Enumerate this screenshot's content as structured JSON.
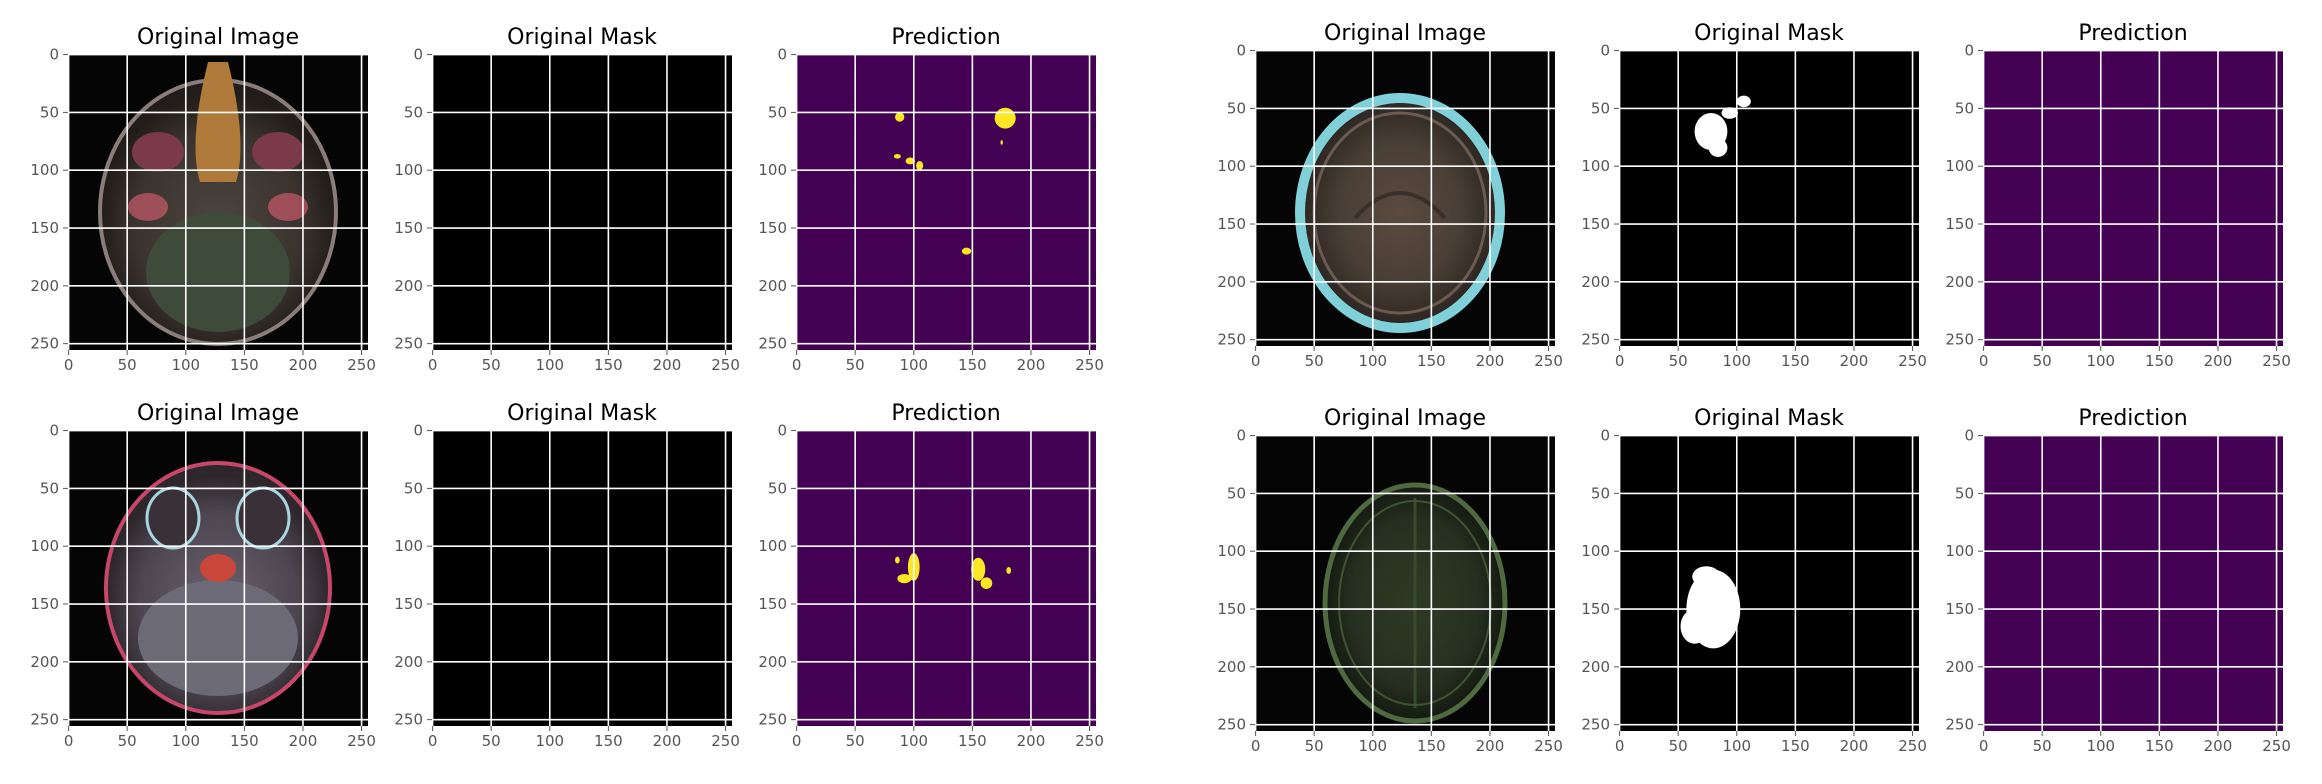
{
  "figure": {
    "background": "#ffffff",
    "colors": {
      "viridis_low": "#440154",
      "viridis_high": "#fde725",
      "mask_background": "#000000",
      "mask_foreground": "#ffffff",
      "grid": "#ffffff",
      "tick_text": "#555555"
    }
  },
  "chart_data": [
    {
      "type": "heatmap",
      "title": "Original Image",
      "content": "mri-slice-orbital",
      "xlim": [
        0,
        255
      ],
      "ylim": [
        255,
        0
      ],
      "xticks": [
        0,
        50,
        100,
        150,
        200,
        250
      ],
      "yticks": [
        0,
        50,
        100,
        150,
        200,
        250
      ],
      "grid": true
    },
    {
      "type": "heatmap",
      "title": "Original Mask",
      "content": "binary-mask",
      "mask_regions": [],
      "xlim": [
        0,
        255
      ],
      "ylim": [
        255,
        0
      ],
      "xticks": [
        0,
        50,
        100,
        150,
        200,
        250
      ],
      "yticks": [
        0,
        50,
        100,
        150,
        200,
        250
      ],
      "grid": true
    },
    {
      "type": "heatmap",
      "title": "Prediction",
      "content": "predicted-mask",
      "mask_regions": [
        {
          "cx": 178,
          "cy": 55,
          "rx": 9,
          "ry": 9
        },
        {
          "cx": 88,
          "cy": 54,
          "rx": 4,
          "ry": 4
        },
        {
          "cx": 86,
          "cy": 88,
          "rx": 3,
          "ry": 2
        },
        {
          "cx": 97,
          "cy": 92,
          "rx": 4,
          "ry": 3
        },
        {
          "cx": 105,
          "cy": 96,
          "rx": 3,
          "ry": 4
        },
        {
          "cx": 145,
          "cy": 170,
          "rx": 4,
          "ry": 3
        },
        {
          "cx": 175,
          "cy": 76,
          "rx": 1,
          "ry": 2
        }
      ],
      "xlim": [
        0,
        255
      ],
      "ylim": [
        255,
        0
      ],
      "xticks": [
        0,
        50,
        100,
        150,
        200,
        250
      ],
      "yticks": [
        0,
        50,
        100,
        150,
        200,
        250
      ],
      "grid": true
    },
    {
      "type": "heatmap",
      "title": "Original Image",
      "content": "mri-slice-skull-top",
      "xlim": [
        0,
        255
      ],
      "ylim": [
        255,
        0
      ],
      "xticks": [
        0,
        50,
        100,
        150,
        200,
        250
      ],
      "yticks": [
        0,
        50,
        100,
        150,
        200,
        250
      ],
      "grid": true
    },
    {
      "type": "heatmap",
      "title": "Original Mask",
      "content": "binary-mask",
      "mask_regions": [
        {
          "cx": 78,
          "cy": 70,
          "rx": 14,
          "ry": 16
        },
        {
          "cx": 94,
          "cy": 54,
          "rx": 7,
          "ry": 5
        },
        {
          "cx": 106,
          "cy": 44,
          "rx": 6,
          "ry": 5
        },
        {
          "cx": 84,
          "cy": 84,
          "rx": 8,
          "ry": 8
        }
      ],
      "xlim": [
        0,
        255
      ],
      "ylim": [
        255,
        0
      ],
      "xticks": [
        0,
        50,
        100,
        150,
        200,
        250
      ],
      "yticks": [
        0,
        50,
        100,
        150,
        200,
        250
      ],
      "grid": true
    },
    {
      "type": "heatmap",
      "title": "Prediction",
      "content": "predicted-mask",
      "mask_regions": [],
      "xlim": [
        0,
        255
      ],
      "ylim": [
        255,
        0
      ],
      "xticks": [
        0,
        50,
        100,
        150,
        200,
        250
      ],
      "yticks": [
        0,
        50,
        100,
        150,
        200,
        250
      ],
      "grid": true
    },
    {
      "type": "heatmap",
      "title": "Original Image",
      "content": "mri-slice-cerebellum",
      "xlim": [
        0,
        255
      ],
      "ylim": [
        255,
        0
      ],
      "xticks": [
        0,
        50,
        100,
        150,
        200,
        250
      ],
      "yticks": [
        0,
        50,
        100,
        150,
        200,
        250
      ],
      "grid": true
    },
    {
      "type": "heatmap",
      "title": "Original Mask",
      "content": "binary-mask",
      "mask_regions": [],
      "xlim": [
        0,
        255
      ],
      "ylim": [
        255,
        0
      ],
      "xticks": [
        0,
        50,
        100,
        150,
        200,
        250
      ],
      "yticks": [
        0,
        50,
        100,
        150,
        200,
        250
      ],
      "grid": true
    },
    {
      "type": "heatmap",
      "title": "Prediction",
      "content": "predicted-mask",
      "mask_regions": [
        {
          "cx": 100,
          "cy": 118,
          "rx": 5,
          "ry": 12
        },
        {
          "cx": 92,
          "cy": 128,
          "rx": 6,
          "ry": 4
        },
        {
          "cx": 86,
          "cy": 112,
          "rx": 2,
          "ry": 3
        },
        {
          "cx": 155,
          "cy": 120,
          "rx": 6,
          "ry": 10
        },
        {
          "cx": 162,
          "cy": 132,
          "rx": 5,
          "ry": 5
        },
        {
          "cx": 181,
          "cy": 121,
          "rx": 2,
          "ry": 3
        }
      ],
      "xlim": [
        0,
        255
      ],
      "ylim": [
        255,
        0
      ],
      "xticks": [
        0,
        50,
        100,
        150,
        200,
        250
      ],
      "yticks": [
        0,
        50,
        100,
        150,
        200,
        250
      ],
      "grid": true
    },
    {
      "type": "heatmap",
      "title": "Original Image",
      "content": "mri-slice-axial-green",
      "xlim": [
        0,
        255
      ],
      "ylim": [
        255,
        0
      ],
      "xticks": [
        0,
        50,
        100,
        150,
        200,
        250
      ],
      "yticks": [
        0,
        50,
        100,
        150,
        200,
        250
      ],
      "grid": true
    },
    {
      "type": "heatmap",
      "title": "Original Mask",
      "content": "binary-mask",
      "mask_regions": [
        {
          "cx": 80,
          "cy": 150,
          "rx": 23,
          "ry": 34
        },
        {
          "cx": 74,
          "cy": 122,
          "rx": 12,
          "ry": 9
        },
        {
          "cx": 64,
          "cy": 165,
          "rx": 12,
          "ry": 15
        }
      ],
      "xlim": [
        0,
        255
      ],
      "ylim": [
        255,
        0
      ],
      "xticks": [
        0,
        50,
        100,
        150,
        200,
        250
      ],
      "yticks": [
        0,
        50,
        100,
        150,
        200,
        250
      ],
      "grid": true
    },
    {
      "type": "heatmap",
      "title": "Prediction",
      "content": "predicted-mask",
      "mask_regions": [],
      "xlim": [
        0,
        255
      ],
      "ylim": [
        255,
        0
      ],
      "xticks": [
        0,
        50,
        100,
        150,
        200,
        250
      ],
      "yticks": [
        0,
        50,
        100,
        150,
        200,
        250
      ],
      "grid": true
    }
  ]
}
